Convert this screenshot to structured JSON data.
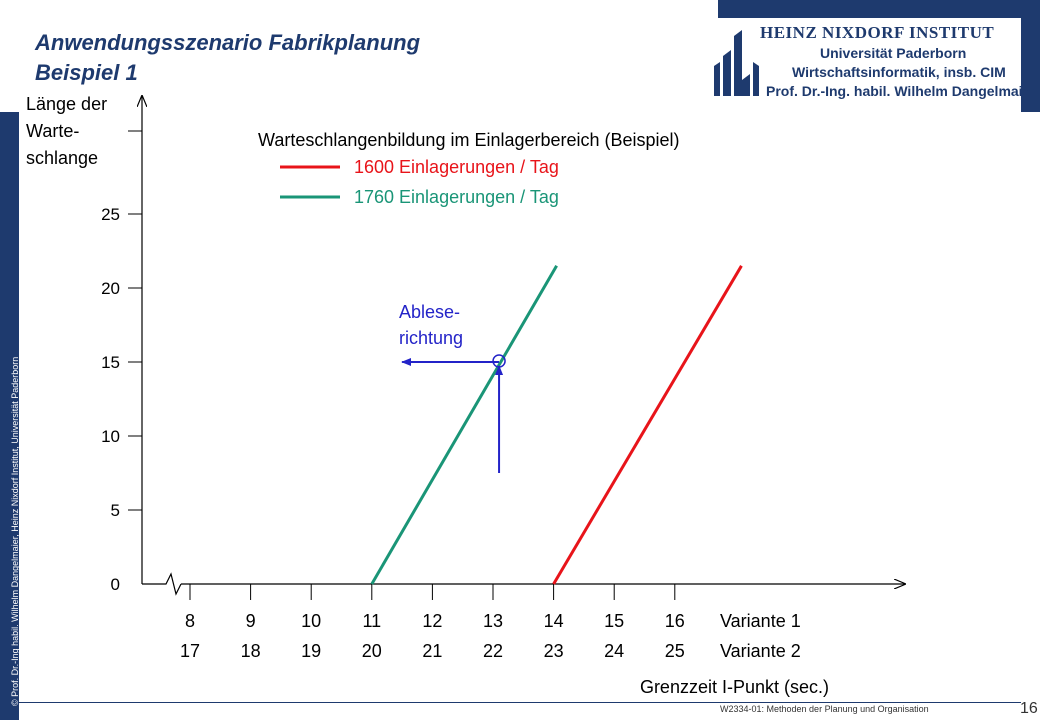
{
  "slide": {
    "title_line1": "Anwendungsszenario Fabrikplanung",
    "title_line2": "Beispiel 1",
    "copyright": "© Prof. Dr.-Ing habil. Wilhelm Dangelmaier, Heinz Nixdorf Institut, Universität Paderborn",
    "footer": "W2334-01: Methoden der Planung und Organisation",
    "page_number": "16"
  },
  "logo": {
    "line1": "HEINZ NIXDORF INSTITUT",
    "line2": "Universität Paderborn",
    "line3": "Wirtschaftsinformatik, insb. CIM",
    "line4": "Prof. Dr.-Ing. habil. Wilhelm Dangelmaier",
    "color": "#1e3a6e",
    "icon": "institute-logo-icon"
  },
  "chart_data": {
    "type": "line",
    "title": "Warteschlangenbildung  im Einlagerbereich  (Beispiel)",
    "ylabel": [
      "Länge der",
      "Warte-",
      "schlange"
    ],
    "xlabel": "Grenzzeit I-Punkt (sec.)",
    "ylim": [
      0,
      25
    ],
    "yticks": [
      "0",
      "5",
      "10",
      "15",
      "20",
      "25"
    ],
    "x_rows": [
      {
        "name": "Variante 1",
        "ticks": [
          "8",
          "9",
          "10",
          "11",
          "12",
          "13",
          "14",
          "15",
          "16"
        ]
      },
      {
        "name": "Variante 2",
        "ticks": [
          "17",
          "18",
          "19",
          "20",
          "21",
          "22",
          "23",
          "24",
          "25"
        ]
      }
    ],
    "series": [
      {
        "name": "1600 Einlagerungen  / Tag",
        "color": "#e8141a",
        "points": [
          [
            14,
            0
          ],
          [
            17.1,
            21.5
          ]
        ]
      },
      {
        "name": "1760 Einlagerungen  / Tag",
        "color": "#1a9577",
        "points": [
          [
            11,
            0
          ],
          [
            14.05,
            21.5
          ]
        ]
      }
    ],
    "annotation": {
      "text": [
        "Ablese-",
        "richtung"
      ],
      "color": "#2323c8",
      "x": 13.1,
      "y": 15,
      "arrow_x_from": 13.1,
      "arrow_y_from": 7.5,
      "arrow_x_to": 11.5
    },
    "axis_break": true
  }
}
